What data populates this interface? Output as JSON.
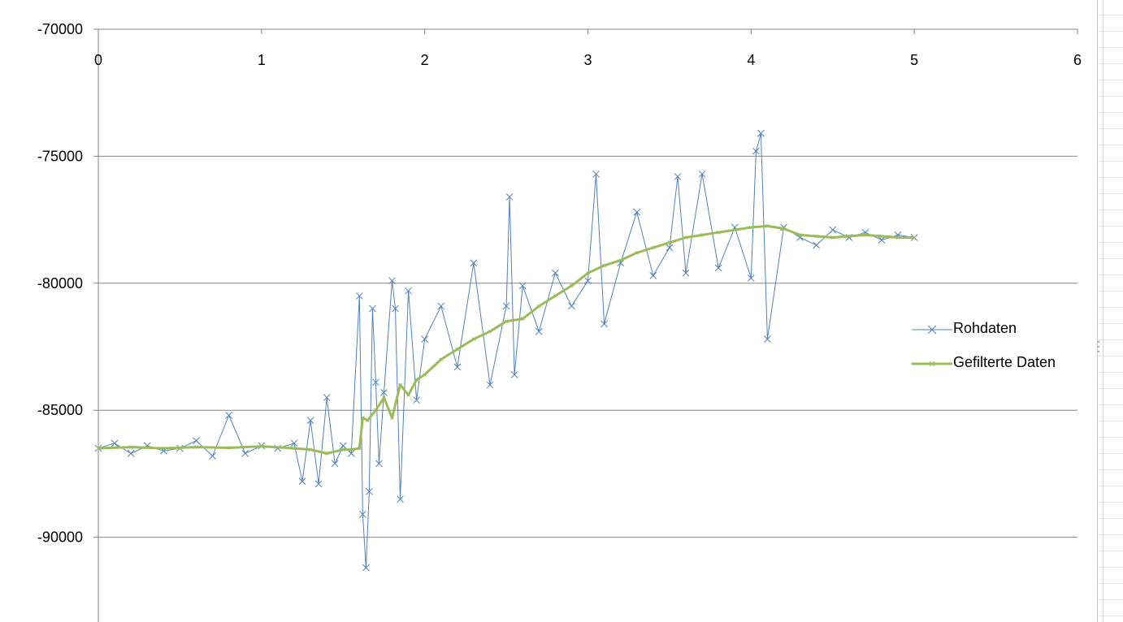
{
  "chart_data": {
    "type": "line",
    "title": "",
    "xlabel": "",
    "ylabel": "",
    "xlim": [
      0,
      6
    ],
    "ylim": [
      -93000,
      -70000
    ],
    "y_axis_reversed": true,
    "x_axis_position": "top",
    "x_ticks": [
      0,
      1,
      2,
      3,
      4,
      5,
      6
    ],
    "y_ticks": [
      -70000,
      -75000,
      -80000,
      -85000,
      -90000
    ],
    "x_tick_labels": [
      "0",
      "1",
      "2",
      "3",
      "4",
      "5",
      "6"
    ],
    "y_tick_labels": [
      "-70000",
      "-75000",
      "-80000",
      "-85000",
      "-90000"
    ],
    "grid": "horizontal",
    "legend": "right",
    "series": [
      {
        "name": "Rohdaten",
        "color": "#4f81bd",
        "marker": "x",
        "x": [
          0,
          0.1,
          0.2,
          0.3,
          0.4,
          0.5,
          0.6,
          0.7,
          0.8,
          0.9,
          1.0,
          1.1,
          1.2,
          1.25,
          1.3,
          1.35,
          1.4,
          1.45,
          1.5,
          1.55,
          1.6,
          1.62,
          1.64,
          1.66,
          1.68,
          1.7,
          1.72,
          1.75,
          1.8,
          1.82,
          1.85,
          1.9,
          1.95,
          2.0,
          2.1,
          2.2,
          2.3,
          2.4,
          2.5,
          2.52,
          2.55,
          2.6,
          2.7,
          2.8,
          2.9,
          3.0,
          3.05,
          3.1,
          3.2,
          3.3,
          3.4,
          3.5,
          3.55,
          3.6,
          3.7,
          3.8,
          3.9,
          4.0,
          4.03,
          4.06,
          4.1,
          4.2,
          4.3,
          4.4,
          4.5,
          4.6,
          4.7,
          4.8,
          4.9,
          5.0
        ],
        "values": [
          -86500,
          -86300,
          -86700,
          -86400,
          -86600,
          -86500,
          -86200,
          -86800,
          -85200,
          -86700,
          -86400,
          -86500,
          -86300,
          -87800,
          -85400,
          -87900,
          -84500,
          -87100,
          -86400,
          -86700,
          -80500,
          -89100,
          -91200,
          -88200,
          -81000,
          -83900,
          -87100,
          -84300,
          -79900,
          -81000,
          -88500,
          -80300,
          -84600,
          -82200,
          -80900,
          -83300,
          -79200,
          -84000,
          -80900,
          -76600,
          -83600,
          -80100,
          -81900,
          -79600,
          -80900,
          -79900,
          -75700,
          -81600,
          -79200,
          -77200,
          -79700,
          -78600,
          -75800,
          -79600,
          -75700,
          -79400,
          -77800,
          -79800,
          -74800,
          -74100,
          -82200,
          -77800,
          -78200,
          -78500,
          -77900,
          -78200,
          -78000,
          -78300,
          -78100,
          -78200
        ]
      },
      {
        "name": "Gefilterte Daten",
        "color": "#9bbb59",
        "marker": "x",
        "x": [
          0,
          0.2,
          0.4,
          0.6,
          0.8,
          1.0,
          1.2,
          1.3,
          1.4,
          1.5,
          1.55,
          1.6,
          1.62,
          1.65,
          1.7,
          1.75,
          1.8,
          1.85,
          1.9,
          1.95,
          2.0,
          2.1,
          2.2,
          2.3,
          2.4,
          2.5,
          2.6,
          2.7,
          2.8,
          2.9,
          3.0,
          3.1,
          3.2,
          3.3,
          3.4,
          3.5,
          3.6,
          3.7,
          3.8,
          3.9,
          4.0,
          4.1,
          4.2,
          4.3,
          4.4,
          4.5,
          4.6,
          4.7,
          4.8,
          4.9,
          5.0
        ],
        "values": [
          -86500,
          -86450,
          -86500,
          -86450,
          -86480,
          -86420,
          -86500,
          -86550,
          -86700,
          -86550,
          -86550,
          -86500,
          -85300,
          -85400,
          -85000,
          -84500,
          -85300,
          -84000,
          -84400,
          -83800,
          -83600,
          -83000,
          -82600,
          -82200,
          -81900,
          -81500,
          -81400,
          -80900,
          -80500,
          -80100,
          -79600,
          -79300,
          -79100,
          -78800,
          -78600,
          -78400,
          -78200,
          -78100,
          -78000,
          -77900,
          -77800,
          -77750,
          -77850,
          -78100,
          -78150,
          -78200,
          -78150,
          -78100,
          -78150,
          -78200,
          -78200
        ]
      }
    ]
  }
}
